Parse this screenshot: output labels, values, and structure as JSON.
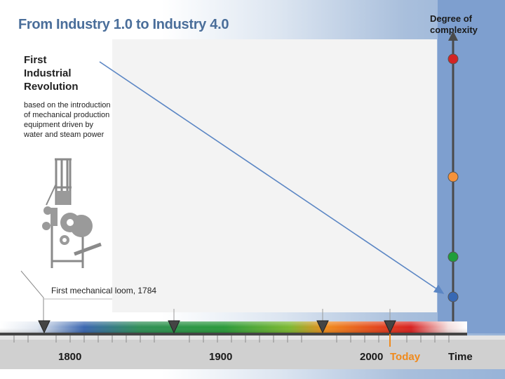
{
  "title": "From Industry 1.0 to Industry 4.0",
  "complexity_axis": {
    "label_line1": "Degree of",
    "label_line2": "complexity",
    "markers": [
      {
        "name": "red",
        "color": "#d42424"
      },
      {
        "name": "orange",
        "color": "#f5923a"
      },
      {
        "name": "green",
        "color": "#1f9e3b"
      },
      {
        "name": "blue",
        "color": "#3768b4"
      }
    ]
  },
  "first_revolution": {
    "title_line1": "First",
    "title_line2": "Industrial",
    "title_line3": "Revolution",
    "desc_line1": "based on the introduction",
    "desc_line2": "of  mechanical production",
    "desc_line3": "equipment driven by",
    "desc_line4": "water and steam power",
    "image_icon": "mechanical-loom-icon",
    "caption": "First mechanical loom, 1784"
  },
  "timeline": {
    "labels": {
      "y1800": "1800",
      "y1900": "1900",
      "y2000": "2000",
      "today": "Today",
      "time": "Time"
    },
    "gradient_colors": [
      "#3a66b0",
      "#2a9a3a",
      "#f08a1c",
      "#d72020",
      "#ffffff"
    ],
    "today_color": "#f08a1c"
  },
  "colors": {
    "title": "#4a6e9a",
    "arrow": "#5b86c4",
    "axis": "#4a4a4a"
  }
}
